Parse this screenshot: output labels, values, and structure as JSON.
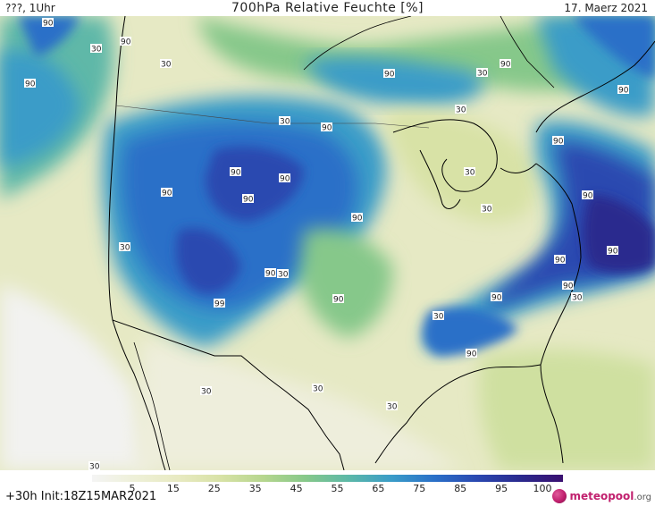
{
  "header": {
    "left": "???, 1Uhr",
    "title": "700hPa Relative Feuchte [%]",
    "right": "17. Maerz 2021"
  },
  "footer": {
    "forecast": "+30h  Init:18Z15MAR2021",
    "logo": "meteopool",
    "logo_suffix": ".org"
  },
  "colorbar": {
    "ticks": [
      "5",
      "15",
      "25",
      "35",
      "45",
      "55",
      "65",
      "75",
      "85",
      "95",
      "100"
    ],
    "colors": [
      "#f4f4f4",
      "#eef0d8",
      "#e8eac2",
      "#d8e2a6",
      "#b6d68e",
      "#86c88a",
      "#5cb8a8",
      "#3a9cc8",
      "#2a70c8",
      "#2a48b0",
      "#2a2a8e",
      "#3a1070"
    ]
  },
  "map": {
    "contour_labels": [
      "90",
      "90",
      "90",
      "90",
      "30",
      "30",
      "90",
      "30",
      "90",
      "90",
      "90",
      "90",
      "90",
      "30",
      "90",
      "90",
      "30",
      "90",
      "90",
      "90",
      "90",
      "90",
      "90",
      "90",
      "99",
      "90",
      "30",
      "30",
      "90",
      "30",
      "30",
      "30",
      "30",
      "30",
      "30",
      "30",
      "30"
    ]
  }
}
